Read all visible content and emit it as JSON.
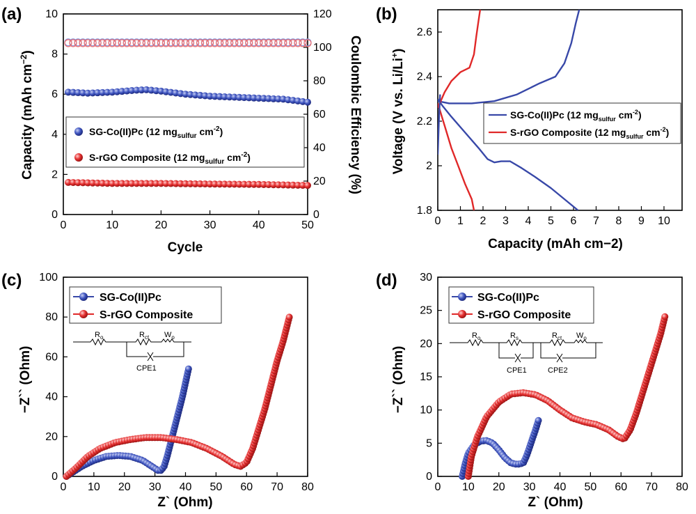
{
  "colors": {
    "blue": "#3848a8",
    "red": "#e02828",
    "blue_light": "#7e8fd8",
    "red_light": "#f07070"
  },
  "panel_a": {
    "label": "(a)",
    "legend": {
      "series1_main": "SG-Co(II)Pc (12 mg",
      "series1_sub": "sulfur",
      "series1_end": " cm",
      "series1_sup": "-2",
      "series1_close": ")",
      "series2_main": "S-rGO Composite (12 mg",
      "series2_sub": "sulfur",
      "series2_end": " cm",
      "series2_sup": "-2",
      "series2_close": ")"
    },
    "xlabel": "Cycle",
    "ylabel_main": "Capacity (mAh cm",
    "ylabel_sup": "−2",
    "ylabel_close": ")",
    "y2label": "Coulombic Efficiency (%)"
  },
  "panel_b": {
    "label": "(b)",
    "legend": {
      "series1_main": "SG-Co(II)Pc (12 mg",
      "series1_sub": "sulfur",
      "series1_end": " cm",
      "series1_sup": "-2",
      "series1_close": ")",
      "series2_main": "S-rGO Composite (12 mg",
      "series2_sub": "sulfur",
      "series2_end": " cm",
      "series2_sup": "-2",
      "series2_close": ")"
    },
    "xlabel": "Capacity (mAh cm−2)",
    "ylabel_main": "Voltage (V vs. Li/Li",
    "ylabel_sup": "+",
    "ylabel_close": ")"
  },
  "panel_c": {
    "label": "(c)",
    "legend": [
      "SG-Co(II)Pc",
      "S-rGO Composite"
    ],
    "xlabel": "Z` (Ohm)",
    "ylabel": "−Z`` (Ohm)",
    "circuit": {
      "r0": "R",
      "r0_sub": "o",
      "rct": "R",
      "rct_sub": "ct",
      "wo": "W",
      "wo_sub": "o",
      "cpe1": "CPE1"
    }
  },
  "panel_d": {
    "label": "(d)",
    "legend": [
      "SG-Co(II)Pc",
      "S-rGO Composite"
    ],
    "xlabel": "Z` (Ohm)",
    "ylabel": "−Z`` (Ohm)",
    "circuit": {
      "r0": "R",
      "r0_sub": "o",
      "rs": "R",
      "rs_sub": "s",
      "rct": "R",
      "rct_sub": "ct",
      "wo": "W",
      "wo_sub": "o",
      "cpe1": "CPE1",
      "cpe2": "CPE2"
    }
  },
  "chart_data": [
    {
      "id": "a",
      "type": "scatter",
      "title": "",
      "xlabel": "Cycle",
      "ylabel": "Capacity (mAh cm−2)",
      "y2label": "Coulombic Efficiency (%)",
      "xlim": [
        0,
        50
      ],
      "ylim": [
        0,
        10
      ],
      "y2lim": [
        0,
        120
      ],
      "xticks": [
        0,
        10,
        20,
        30,
        40,
        50
      ],
      "yticks": [
        0,
        2,
        4,
        6,
        8,
        10
      ],
      "y2ticks": [
        0,
        20,
        40,
        60,
        80,
        100,
        120
      ],
      "series": [
        {
          "name": "SG-Co(II)Pc capacity",
          "color": "blue",
          "axis": "left",
          "x": [
            1,
            5,
            10,
            15,
            17,
            20,
            25,
            30,
            35,
            40,
            45,
            50
          ],
          "y": [
            6.1,
            6.05,
            6.1,
            6.2,
            6.22,
            6.15,
            6.0,
            5.9,
            5.85,
            5.8,
            5.75,
            5.6
          ]
        },
        {
          "name": "S-rGO Composite capacity",
          "color": "red",
          "axis": "left",
          "x": [
            1,
            10,
            20,
            30,
            40,
            50
          ],
          "y": [
            1.6,
            1.55,
            1.55,
            1.52,
            1.5,
            1.45
          ]
        },
        {
          "name": "SG-Co(II)Pc efficiency",
          "color": "blue",
          "axis": "right",
          "hollow": true,
          "x": [
            1,
            10,
            20,
            30,
            40,
            50
          ],
          "y": [
            103,
            103,
            103,
            103,
            103,
            103
          ]
        },
        {
          "name": "S-rGO Composite efficiency",
          "color": "red",
          "axis": "right",
          "hollow": true,
          "x": [
            1,
            10,
            20,
            30,
            40,
            50
          ],
          "y": [
            102.5,
            102.5,
            102.5,
            102.5,
            102.5,
            102.5
          ]
        }
      ],
      "legend": [
        "SG-Co(II)Pc (12 mgsulfur cm-2)",
        "S-rGO Composite (12 mgsulfur cm-2)"
      ]
    },
    {
      "id": "b",
      "type": "line",
      "title": "",
      "xlabel": "Capacity (mAh cm−2)",
      "ylabel": "Voltage (V vs. Li/Li+)",
      "xlim": [
        0,
        10.8
      ],
      "ylim": [
        1.8,
        2.7
      ],
      "xticks": [
        0,
        1,
        2,
        3,
        4,
        5,
        6,
        7,
        8,
        9,
        10
      ],
      "yticks": [
        1.8,
        2.0,
        2.2,
        2.4,
        2.6
      ],
      "series": [
        {
          "name": "SG-Co(II)Pc discharge",
          "color": "blue",
          "x": [
            0,
            0.2,
            0.6,
            1.2,
            1.8,
            2.2,
            2.5,
            2.8,
            3.2,
            3.7,
            4.3,
            5.0,
            5.6,
            6.2
          ],
          "y": [
            2.3,
            2.27,
            2.22,
            2.15,
            2.08,
            2.03,
            2.015,
            2.02,
            2.02,
            1.99,
            1.95,
            1.9,
            1.85,
            1.8
          ]
        },
        {
          "name": "SG-Co(II)Pc charge",
          "color": "blue",
          "x": [
            0,
            0.5,
            1.5,
            2.5,
            3.5,
            4.5,
            5.2,
            5.6,
            5.9,
            6.1,
            6.3
          ],
          "y": [
            2.29,
            2.28,
            2.28,
            2.29,
            2.32,
            2.37,
            2.4,
            2.46,
            2.55,
            2.64,
            2.72
          ]
        },
        {
          "name": "S-rGO Composite discharge",
          "color": "red",
          "x": [
            0,
            0.3,
            0.6,
            0.9,
            1.2,
            1.5,
            1.6
          ],
          "y": [
            2.28,
            2.18,
            2.08,
            2.0,
            1.92,
            1.85,
            1.8
          ]
        },
        {
          "name": "S-rGO Composite charge",
          "color": "red",
          "x": [
            0,
            0.3,
            0.6,
            1.0,
            1.4,
            1.6,
            1.7,
            1.8,
            1.9
          ],
          "y": [
            2.26,
            2.33,
            2.38,
            2.42,
            2.44,
            2.5,
            2.58,
            2.65,
            2.72
          ]
        },
        {
          "name": "SG-Co(II)Pc initial",
          "color": "blue",
          "x": [
            0,
            0.05,
            0.1
          ],
          "y": [
            2.05,
            2.2,
            2.32
          ]
        }
      ],
      "legend": [
        "SG-Co(II)Pc (12 mgsulfur cm-2)",
        "S-rGO Composite (12 mgsulfur cm-2)"
      ]
    },
    {
      "id": "c",
      "type": "scatter",
      "title": "",
      "xlabel": "Z` (Ohm)",
      "ylabel": "−Z`` (Ohm)",
      "xlim": [
        0,
        80
      ],
      "ylim": [
        0,
        100
      ],
      "xticks": [
        0,
        10,
        20,
        30,
        40,
        50,
        60,
        70,
        80
      ],
      "yticks": [
        0,
        20,
        40,
        60,
        80,
        100
      ],
      "series": [
        {
          "name": "SG-Co(II)Pc",
          "color": "blue",
          "x": [
            1,
            3,
            6,
            10,
            14,
            18,
            22,
            26,
            29,
            31,
            32,
            33,
            34,
            35,
            36,
            37,
            38,
            39,
            40,
            41
          ],
          "y": [
            0,
            2,
            5,
            8,
            10,
            10.5,
            10,
            8,
            5,
            3,
            3,
            5,
            10,
            16,
            22,
            28,
            34,
            40,
            47,
            54
          ]
        },
        {
          "name": "S-rGO Composite",
          "color": "red",
          "x": [
            1,
            4,
            8,
            12,
            17,
            22,
            27,
            32,
            37,
            42,
            47,
            52,
            56,
            58,
            60,
            62,
            64,
            66,
            68,
            70,
            72,
            74
          ],
          "y": [
            0,
            4,
            10,
            14,
            17,
            18.5,
            19.5,
            19.5,
            18.5,
            17,
            14,
            10,
            6,
            5,
            7,
            14,
            24,
            34,
            46,
            58,
            68,
            80
          ]
        }
      ],
      "legend": [
        "SG-Co(II)Pc",
        "S-rGO Composite"
      ]
    },
    {
      "id": "d",
      "type": "scatter",
      "title": "",
      "xlabel": "Z` (Ohm)",
      "ylabel": "−Z`` (Ohm)",
      "xlim": [
        0,
        80
      ],
      "ylim": [
        0,
        30
      ],
      "xticks": [
        0,
        10,
        20,
        30,
        40,
        50,
        60,
        70,
        80
      ],
      "yticks": [
        0,
        5,
        10,
        15,
        20,
        25,
        30
      ],
      "series": [
        {
          "name": "SG-Co(II)Pc",
          "color": "blue",
          "x": [
            8,
            9,
            10,
            12,
            14,
            16,
            18,
            20,
            22,
            24,
            26,
            28,
            29,
            30,
            31,
            32,
            33
          ],
          "y": [
            0,
            2,
            3.5,
            4.8,
            5.3,
            5.4,
            5.0,
            4.0,
            2.8,
            2.0,
            1.8,
            2.0,
            3.0,
            4.3,
            5.7,
            7.0,
            8.5
          ]
        },
        {
          "name": "S-rGO Composite",
          "color": "red",
          "x": [
            10,
            11,
            13,
            16,
            20,
            24,
            28,
            32,
            36,
            40,
            44,
            48,
            52,
            56,
            59,
            61,
            63,
            65,
            67,
            69,
            71,
            73,
            74.5
          ],
          "y": [
            0,
            3,
            6,
            9,
            11.2,
            12.4,
            12.6,
            12.3,
            11.4,
            10,
            8.8,
            8.2,
            7.8,
            7,
            6,
            5.6,
            7,
            9.5,
            12.5,
            15.5,
            18.5,
            21.5,
            24.3
          ]
        }
      ],
      "legend": [
        "SG-Co(II)Pc",
        "S-rGO Composite"
      ]
    }
  ]
}
